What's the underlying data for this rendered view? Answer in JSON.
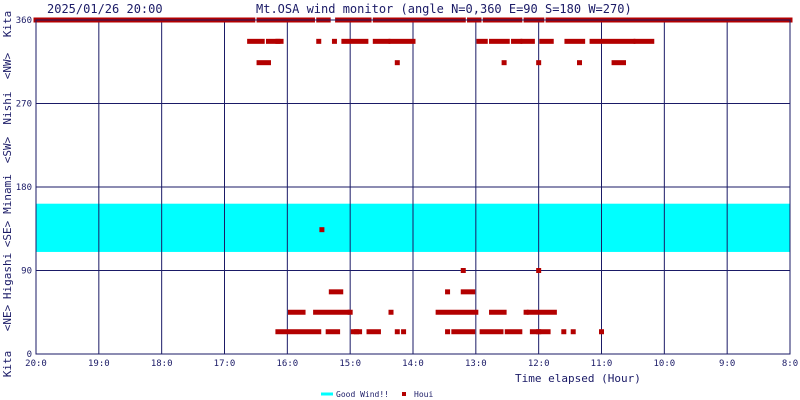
{
  "chart_data": {
    "type": "scatter",
    "timestamp": "2025/01/26 20:00",
    "title": "Mt.OSA wind monitor (angle N=0,360 E=90 S=180 W=270)",
    "xlabel": "Time elapsed (Hour)",
    "y_side_labels": [
      "Kita",
      "<NE>",
      "Higashi",
      "<SE>",
      "Minami",
      "<SW>",
      "Nishi",
      "<NW>",
      "Kita"
    ],
    "x_ticks": [
      "20:0",
      "19:0",
      "18:0",
      "17:0",
      "16:0",
      "15:0",
      "14:0",
      "13:0",
      "12:0",
      "11:0",
      "10:0",
      "9:0",
      "8:0"
    ],
    "x_tick_hours": [
      20,
      19,
      18,
      17,
      16,
      15,
      14,
      13,
      12,
      11,
      10,
      9,
      8
    ],
    "xlim": [
      20,
      8
    ],
    "y_ticks": [
      "0",
      "90",
      "180",
      "270",
      "360"
    ],
    "y_tick_values": [
      0,
      90,
      180,
      270,
      360
    ],
    "ylim": [
      0,
      360
    ],
    "grid": true,
    "good_wind_band": {
      "name": "Good Wind!!",
      "from": 110,
      "to": 162,
      "color": "#00ffff"
    },
    "legend": [
      {
        "label": "Good Wind!!",
        "color": "#00ffff",
        "marker": "line"
      },
      {
        "label": "Houi",
        "color": "#b30000",
        "marker": "square"
      }
    ],
    "series": [
      {
        "name": "Houi",
        "color": "#b30000",
        "segments": [
          {
            "t_from": 20.0,
            "t_to": 16.55,
            "value": 360
          },
          {
            "t_from": 16.45,
            "t_to": 15.6,
            "value": 360
          },
          {
            "t_from": 15.5,
            "t_to": 15.35,
            "value": 360
          },
          {
            "t_from": 15.2,
            "t_to": 14.7,
            "value": 360
          },
          {
            "t_from": 14.6,
            "t_to": 13.2,
            "value": 360
          },
          {
            "t_from": 13.1,
            "t_to": 12.95,
            "value": 360
          },
          {
            "t_from": 12.85,
            "t_to": 12.3,
            "value": 360
          },
          {
            "t_from": 12.2,
            "t_to": 11.95,
            "value": 360
          },
          {
            "t_from": 11.85,
            "t_to": 8.0,
            "value": 360
          },
          {
            "t_from": 16.6,
            "t_to": 16.4,
            "value": 337
          },
          {
            "t_from": 16.3,
            "t_to": 16.1,
            "value": 337
          },
          {
            "t_from": 15.1,
            "t_to": 14.75,
            "value": 337
          },
          {
            "t_from": 14.6,
            "t_to": 14.4,
            "value": 337
          },
          {
            "t_from": 14.35,
            "t_to": 14.0,
            "value": 337
          },
          {
            "t_from": 12.95,
            "t_to": 12.85,
            "value": 337
          },
          {
            "t_from": 12.75,
            "t_to": 12.5,
            "value": 337
          },
          {
            "t_from": 12.4,
            "t_to": 12.3,
            "value": 337
          },
          {
            "t_from": 12.25,
            "t_to": 12.1,
            "value": 337
          },
          {
            "t_from": 11.95,
            "t_to": 11.8,
            "value": 337
          },
          {
            "t_from": 11.55,
            "t_to": 11.3,
            "value": 337
          },
          {
            "t_from": 11.15,
            "t_to": 10.5,
            "value": 337
          },
          {
            "t_from": 10.45,
            "t_to": 10.2,
            "value": 337
          },
          {
            "t_from": 16.45,
            "t_to": 16.3,
            "value": 314
          },
          {
            "t_from": 10.8,
            "t_to": 10.65,
            "value": 314
          },
          {
            "t_from": 16.15,
            "t_to": 15.5,
            "value": 24
          },
          {
            "t_from": 15.35,
            "t_to": 15.2,
            "value": 24
          },
          {
            "t_from": 14.95,
            "t_to": 14.85,
            "value": 24
          },
          {
            "t_from": 14.7,
            "t_to": 14.55,
            "value": 24
          },
          {
            "t_from": 13.35,
            "t_to": 13.05,
            "value": 24
          },
          {
            "t_from": 12.9,
            "t_to": 12.6,
            "value": 24
          },
          {
            "t_from": 12.5,
            "t_to": 12.3,
            "value": 24
          },
          {
            "t_from": 12.1,
            "t_to": 11.85,
            "value": 24
          },
          {
            "t_from": 15.95,
            "t_to": 15.75,
            "value": 45
          },
          {
            "t_from": 15.55,
            "t_to": 15.05,
            "value": 45
          },
          {
            "t_from": 13.6,
            "t_to": 13.0,
            "value": 45
          },
          {
            "t_from": 12.75,
            "t_to": 12.55,
            "value": 45
          },
          {
            "t_from": 12.15,
            "t_to": 11.75,
            "value": 45
          },
          {
            "t_from": 15.3,
            "t_to": 15.15,
            "value": 67
          },
          {
            "t_from": 13.2,
            "t_to": 13.05,
            "value": 67
          }
        ],
        "points": [
          {
            "t": 16.05,
            "value": 360
          },
          {
            "t": 16.15,
            "value": 337
          },
          {
            "t": 15.5,
            "value": 337
          },
          {
            "t": 15.25,
            "value": 337
          },
          {
            "t": 14.85,
            "value": 360
          },
          {
            "t": 14.25,
            "value": 314
          },
          {
            "t": 12.55,
            "value": 314
          },
          {
            "t": 12.0,
            "value": 314
          },
          {
            "t": 11.35,
            "value": 314
          },
          {
            "t": 15.45,
            "value": 134
          },
          {
            "t": 13.2,
            "value": 90
          },
          {
            "t": 12.0,
            "value": 90
          },
          {
            "t": 15.0,
            "value": 45
          },
          {
            "t": 14.35,
            "value": 45
          },
          {
            "t": 14.9,
            "value": 24
          },
          {
            "t": 14.25,
            "value": 24
          },
          {
            "t": 14.15,
            "value": 24
          },
          {
            "t": 13.45,
            "value": 24
          },
          {
            "t": 13.45,
            "value": 67
          },
          {
            "t": 12.2,
            "value": 45
          },
          {
            "t": 11.45,
            "value": 24
          },
          {
            "t": 11.6,
            "value": 24
          },
          {
            "t": 11.0,
            "value": 24
          },
          {
            "t": 12.0,
            "value": 24
          }
        ]
      }
    ]
  }
}
